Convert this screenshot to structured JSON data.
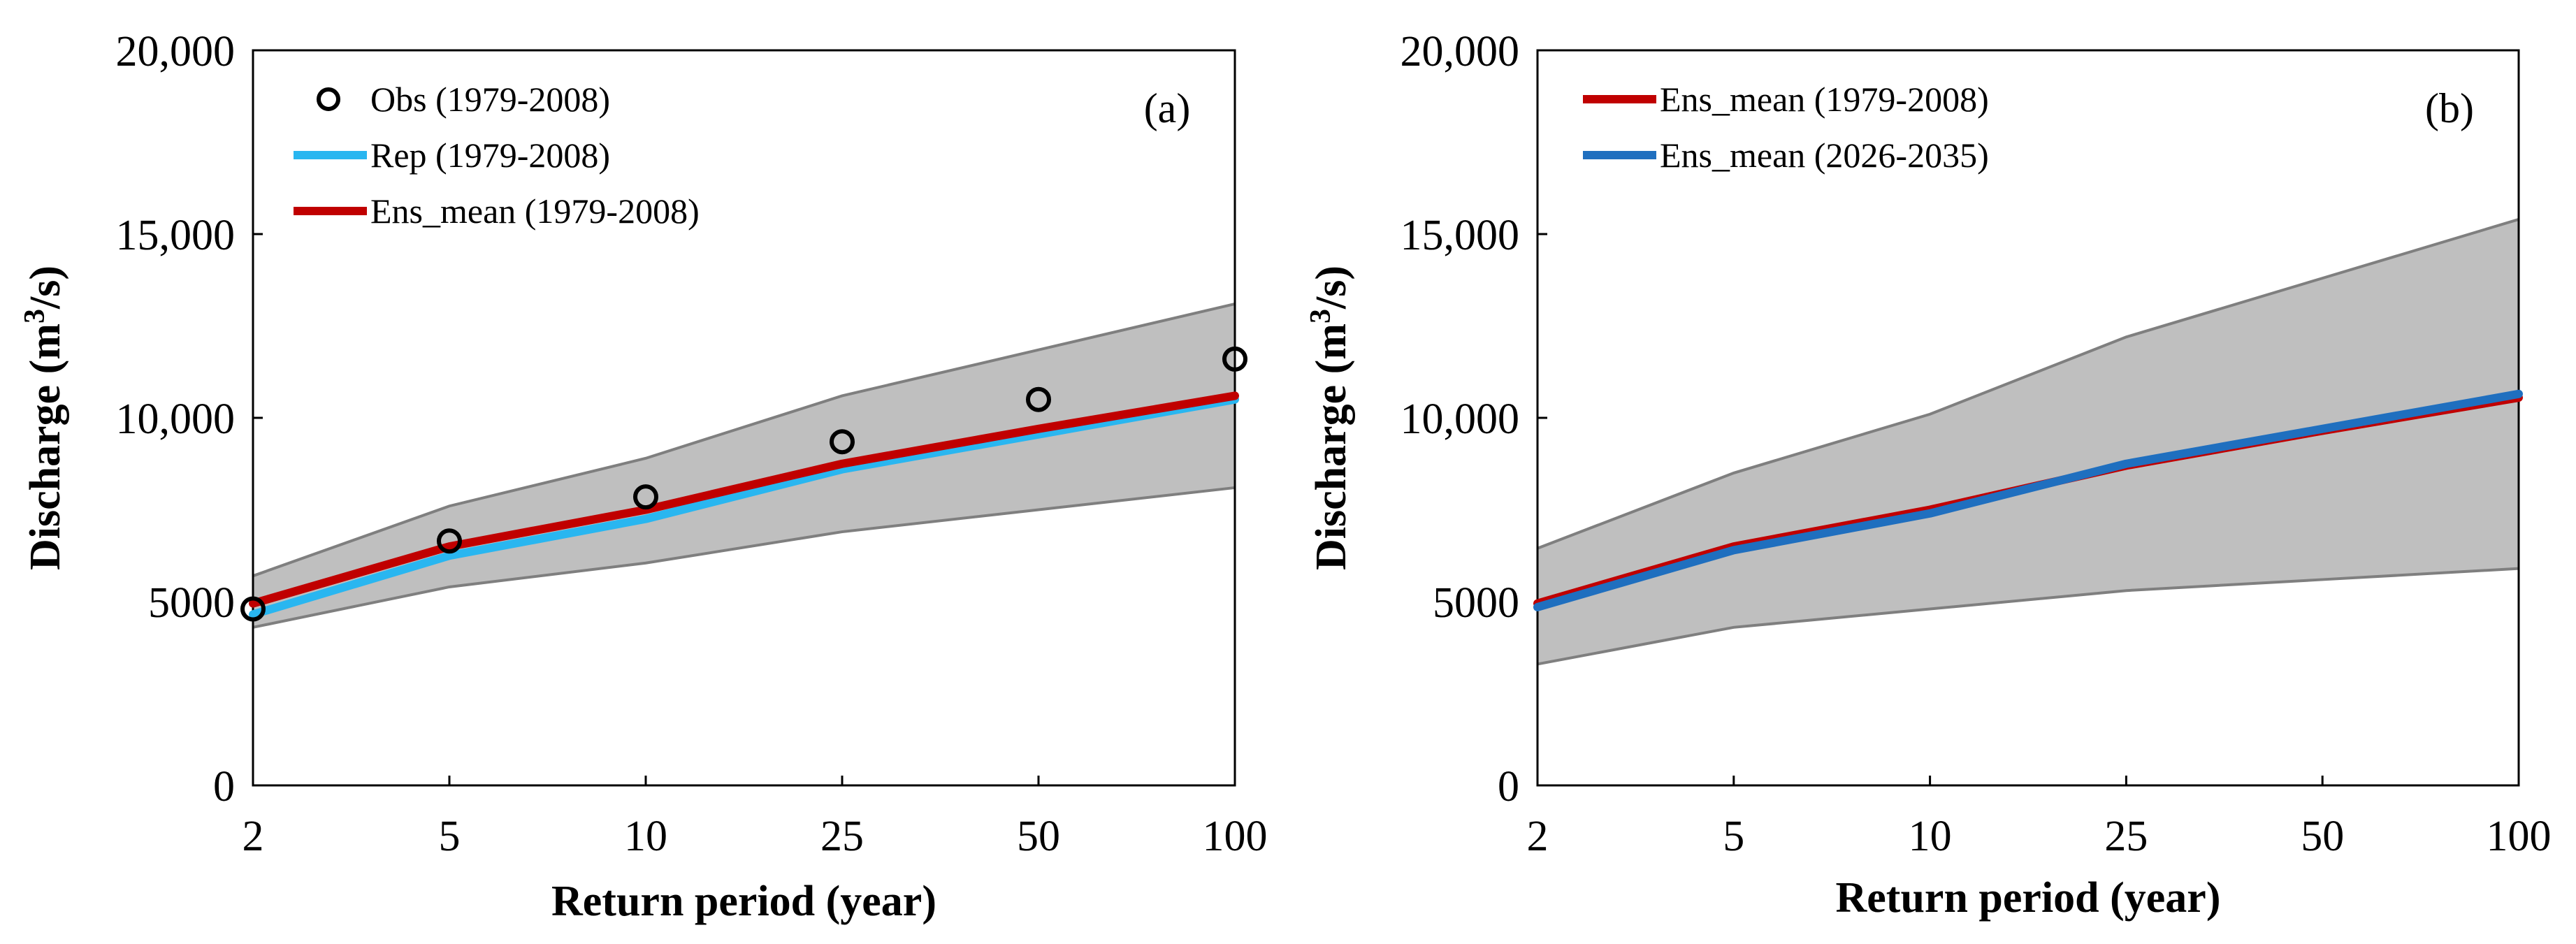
{
  "chart_data": [
    {
      "type": "line",
      "panel_label": "(a)",
      "categories": [
        "2",
        "5",
        "10",
        "25",
        "50",
        "100"
      ],
      "xlabel": "Return period (year)",
      "ylabel_prefix": "Discharge (m",
      "ylabel_sup": "3",
      "ylabel_suffix": "/s)",
      "ylim": [
        0,
        20000
      ],
      "yticks": [
        0,
        5000,
        10000,
        15000,
        20000
      ],
      "ytick_labels": [
        "0",
        "5000",
        "10,000",
        "15,000",
        "20,000"
      ],
      "legend_position": "top-left",
      "band": {
        "upper": [
          5700,
          7600,
          8900,
          10600,
          11850,
          13100
        ],
        "lower": [
          4300,
          5400,
          6050,
          6900,
          7500,
          8100
        ],
        "color": "#bfbfbf",
        "edge_color": "#7f7f7f"
      },
      "series": [
        {
          "name": "Obs  (1979-2008)",
          "style": "marker",
          "color": "#000000",
          "values": [
            4800,
            6650,
            7850,
            9350,
            10500,
            11600
          ]
        },
        {
          "name": "Rep (1979-2008)",
          "style": "line",
          "color": "#29b6f0",
          "values": [
            4650,
            6250,
            7250,
            8600,
            9550,
            10500
          ]
        },
        {
          "name": "Ens_mean (1979-2008)",
          "style": "line",
          "color": "#c00000",
          "values": [
            4950,
            6500,
            7500,
            8750,
            9700,
            10600
          ]
        }
      ]
    },
    {
      "type": "line",
      "panel_label": "(b)",
      "categories": [
        "2",
        "5",
        "10",
        "25",
        "50",
        "100"
      ],
      "xlabel": "Return period (year)",
      "ylabel_prefix": "Discharge (m",
      "ylabel_sup": "3",
      "ylabel_suffix": "/s)",
      "ylim": [
        0,
        20000
      ],
      "yticks": [
        0,
        5000,
        10000,
        15000,
        20000
      ],
      "ytick_labels": [
        "0",
        "5000",
        "10,000",
        "15,000",
        "20,000"
      ],
      "legend_position": "top-left",
      "band": {
        "upper": [
          6450,
          8500,
          10100,
          12200,
          13800,
          15400
        ],
        "lower": [
          3300,
          4300,
          4800,
          5300,
          5600,
          5900
        ],
        "color": "#bfbfbf",
        "edge_color": "#7f7f7f"
      },
      "series": [
        {
          "name": "Ens_mean (1979-2008)",
          "style": "line",
          "color": "#c00000",
          "values": [
            4950,
            6500,
            7500,
            8700,
            9650,
            10550
          ]
        },
        {
          "name": "Ens_mean (2026-2035)",
          "style": "line",
          "color": "#1f6fbf",
          "values": [
            4850,
            6400,
            7400,
            8750,
            9700,
            10650
          ]
        }
      ]
    }
  ]
}
